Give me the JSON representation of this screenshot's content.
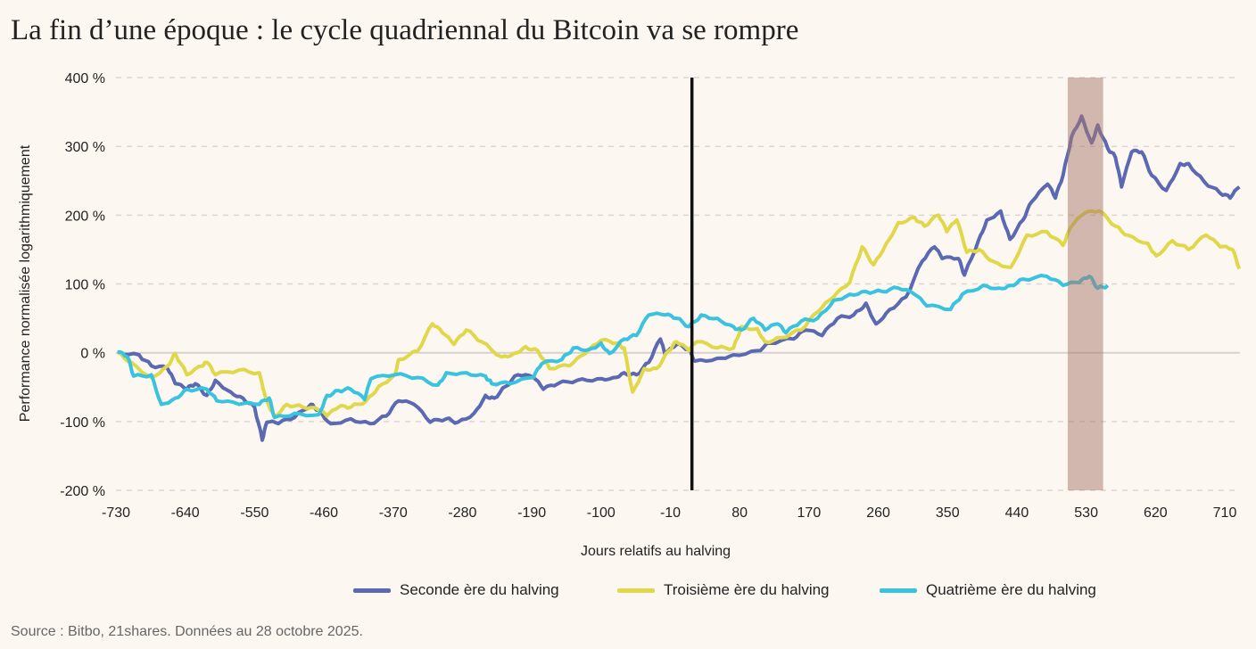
{
  "title": "La fin d’une époque : le cycle quadriennal du Bitcoin va se rompre",
  "source": "Source : Bitbo, 21shares. Données au 28 octobre 2025.",
  "chart_data": {
    "type": "line",
    "title": "La fin d’une époque : le cycle quadriennal du Bitcoin va se rompre",
    "xlabel": "Jours relatifs au halving",
    "ylabel": "Performance normalisée logarithmiquement",
    "xlim": [
      -730,
      735
    ],
    "ylim": [
      -200,
      400
    ],
    "x_ticks": [
      -730,
      -640,
      -550,
      -460,
      -370,
      -280,
      -190,
      -100,
      -10,
      80,
      170,
      260,
      350,
      440,
      530,
      620,
      710
    ],
    "y_ticks": [
      400,
      300,
      200,
      100,
      0,
      -100,
      -200
    ],
    "y_tick_labels": [
      "400 %",
      "300 %",
      "200 %",
      "100 %",
      "0 %",
      "-100 %",
      "-200 %"
    ],
    "grid": "horizontal dashed",
    "legend_position": "bottom",
    "halving_line_day": 18,
    "shaded_range": [
      506,
      552
    ],
    "colors": {
      "background": "#fdf7f2",
      "halving_line": "#111111",
      "band": "#a8776a"
    },
    "series": [
      {
        "name": "Seconde ère du halving",
        "color": "#5b69b2",
        "points": [
          [
            -728,
            1
          ],
          [
            -700,
            -3
          ],
          [
            -684,
            -19
          ],
          [
            -663,
            -23
          ],
          [
            -653,
            -45
          ],
          [
            -638,
            -53
          ],
          [
            -627,
            -45
          ],
          [
            -612,
            -62
          ],
          [
            -601,
            -40
          ],
          [
            -581,
            -57
          ],
          [
            -565,
            -66
          ],
          [
            -550,
            -79
          ],
          [
            -540,
            -127
          ],
          [
            -534,
            -101
          ],
          [
            -519,
            -103
          ],
          [
            -498,
            -94
          ],
          [
            -477,
            -75
          ],
          [
            -467,
            -83
          ],
          [
            -451,
            -103
          ],
          [
            -425,
            -96
          ],
          [
            -400,
            -103
          ],
          [
            -379,
            -92
          ],
          [
            -363,
            -70
          ],
          [
            -343,
            -75
          ],
          [
            -322,
            -101
          ],
          [
            -301,
            -96
          ],
          [
            -286,
            -101
          ],
          [
            -265,
            -88
          ],
          [
            -250,
            -62
          ],
          [
            -239,
            -66
          ],
          [
            -224,
            -49
          ],
          [
            -208,
            -32
          ],
          [
            -188,
            -36
          ],
          [
            -175,
            -53
          ],
          [
            -156,
            -45
          ],
          [
            -131,
            -40
          ],
          [
            -105,
            -38
          ],
          [
            -84,
            -36
          ],
          [
            -70,
            -29
          ],
          [
            -54,
            -32
          ],
          [
            -38,
            -14
          ],
          [
            -23,
            20
          ],
          [
            -17,
            -3
          ],
          [
            -2,
            12
          ],
          [
            14,
            5
          ],
          [
            22,
            -12
          ],
          [
            51,
            -8
          ],
          [
            72,
            -3
          ],
          [
            103,
            3
          ],
          [
            119,
            14
          ],
          [
            150,
            20
          ],
          [
            166,
            33
          ],
          [
            187,
            25
          ],
          [
            207,
            50
          ],
          [
            228,
            55
          ],
          [
            244,
            72
          ],
          [
            257,
            42
          ],
          [
            275,
            63
          ],
          [
            296,
            81
          ],
          [
            317,
            133
          ],
          [
            333,
            154
          ],
          [
            343,
            137
          ],
          [
            364,
            137
          ],
          [
            372,
            113
          ],
          [
            390,
            163
          ],
          [
            401,
            193
          ],
          [
            419,
            206
          ],
          [
            431,
            165
          ],
          [
            448,
            193
          ],
          [
            459,
            219
          ],
          [
            480,
            245
          ],
          [
            490,
            225
          ],
          [
            500,
            258
          ],
          [
            511,
            314
          ],
          [
            524,
            344
          ],
          [
            537,
            305
          ],
          [
            545,
            331
          ],
          [
            558,
            297
          ],
          [
            568,
            284
          ],
          [
            576,
            241
          ],
          [
            589,
            292
          ],
          [
            602,
            292
          ],
          [
            615,
            258
          ],
          [
            634,
            236
          ],
          [
            652,
            275
          ],
          [
            663,
            275
          ],
          [
            683,
            249
          ],
          [
            704,
            232
          ],
          [
            717,
            225
          ],
          [
            729,
            241
          ]
        ]
      },
      {
        "name": "Troisième ère du halving",
        "color": "#e0d84a",
        "points": [
          [
            -728,
            1
          ],
          [
            -710,
            -14
          ],
          [
            -684,
            -36
          ],
          [
            -663,
            -19
          ],
          [
            -653,
            -1
          ],
          [
            -638,
            -32
          ],
          [
            -617,
            -19
          ],
          [
            -612,
            -14
          ],
          [
            -601,
            -32
          ],
          [
            -570,
            -25
          ],
          [
            -544,
            -29
          ],
          [
            -534,
            -70
          ],
          [
            -524,
            -92
          ],
          [
            -508,
            -75
          ],
          [
            -487,
            -79
          ],
          [
            -467,
            -83
          ],
          [
            -456,
            -92
          ],
          [
            -441,
            -79
          ],
          [
            -425,
            -79
          ],
          [
            -405,
            -70
          ],
          [
            -389,
            -49
          ],
          [
            -368,
            -32
          ],
          [
            -363,
            -10
          ],
          [
            -338,
            3
          ],
          [
            -319,
            42
          ],
          [
            -306,
            29
          ],
          [
            -291,
            12
          ],
          [
            -275,
            33
          ],
          [
            -255,
            16
          ],
          [
            -229,
            -6
          ],
          [
            -213,
            -1
          ],
          [
            -198,
            9
          ],
          [
            -182,
            3
          ],
          [
            -167,
            -23
          ],
          [
            -141,
            -19
          ],
          [
            -120,
            -1
          ],
          [
            -100,
            18
          ],
          [
            -79,
            14
          ],
          [
            -70,
            7
          ],
          [
            -59,
            -57
          ],
          [
            -44,
            -23
          ],
          [
            -28,
            -23
          ],
          [
            -12,
            3
          ],
          [
            -2,
            16
          ],
          [
            14,
            3
          ],
          [
            24,
            16
          ],
          [
            51,
            7
          ],
          [
            72,
            7
          ],
          [
            82,
            38
          ],
          [
            103,
            35
          ],
          [
            113,
            16
          ],
          [
            134,
            22
          ],
          [
            160,
            33
          ],
          [
            181,
            59
          ],
          [
            202,
            81
          ],
          [
            223,
            102
          ],
          [
            239,
            154
          ],
          [
            254,
            128
          ],
          [
            270,
            158
          ],
          [
            286,
            189
          ],
          [
            307,
            197
          ],
          [
            320,
            184
          ],
          [
            338,
            200
          ],
          [
            349,
            176
          ],
          [
            362,
            193
          ],
          [
            375,
            146
          ],
          [
            391,
            150
          ],
          [
            409,
            133
          ],
          [
            432,
            124
          ],
          [
            453,
            171
          ],
          [
            479,
            176
          ],
          [
            500,
            156
          ],
          [
            511,
            184
          ],
          [
            527,
            202
          ],
          [
            547,
            206
          ],
          [
            568,
            184
          ],
          [
            584,
            171
          ],
          [
            610,
            159
          ],
          [
            621,
            141
          ],
          [
            642,
            163
          ],
          [
            663,
            150
          ],
          [
            686,
            171
          ],
          [
            704,
            154
          ],
          [
            720,
            150
          ],
          [
            729,
            122
          ]
        ]
      },
      {
        "name": "Quatrième ère du halving",
        "color": "#3ac3df",
        "points": [
          [
            -728,
            1
          ],
          [
            -715,
            -6
          ],
          [
            -707,
            -34
          ],
          [
            -684,
            -32
          ],
          [
            -671,
            -75
          ],
          [
            -653,
            -66
          ],
          [
            -638,
            -53
          ],
          [
            -612,
            -53
          ],
          [
            -599,
            -70
          ],
          [
            -570,
            -75
          ],
          [
            -544,
            -75
          ],
          [
            -531,
            -66
          ],
          [
            -524,
            -94
          ],
          [
            -498,
            -88
          ],
          [
            -467,
            -90
          ],
          [
            -456,
            -62
          ],
          [
            -441,
            -55
          ],
          [
            -425,
            -53
          ],
          [
            -407,
            -68
          ],
          [
            -399,
            -38
          ],
          [
            -368,
            -32
          ],
          [
            -338,
            -36
          ],
          [
            -312,
            -47
          ],
          [
            -301,
            -29
          ],
          [
            -275,
            -29
          ],
          [
            -250,
            -34
          ],
          [
            -242,
            -45
          ],
          [
            -218,
            -45
          ],
          [
            -188,
            -36
          ],
          [
            -177,
            -16
          ],
          [
            -151,
            -10
          ],
          [
            -136,
            7
          ],
          [
            -115,
            5
          ],
          [
            -100,
            14
          ],
          [
            -89,
            -1
          ],
          [
            -70,
            20
          ],
          [
            -54,
            25
          ],
          [
            -38,
            55
          ],
          [
            -17,
            55
          ],
          [
            -2,
            50
          ],
          [
            14,
            38
          ],
          [
            30,
            55
          ],
          [
            51,
            50
          ],
          [
            72,
            38
          ],
          [
            82,
            33
          ],
          [
            98,
            50
          ],
          [
            113,
            33
          ],
          [
            129,
            42
          ],
          [
            140,
            29
          ],
          [
            160,
            46
          ],
          [
            181,
            50
          ],
          [
            202,
            76
          ],
          [
            223,
            85
          ],
          [
            244,
            89
          ],
          [
            265,
            89
          ],
          [
            286,
            94
          ],
          [
            307,
            85
          ],
          [
            323,
            68
          ],
          [
            354,
            63
          ],
          [
            369,
            85
          ],
          [
            396,
            98
          ],
          [
            417,
            94
          ],
          [
            432,
            98
          ],
          [
            448,
            107
          ],
          [
            479,
            111
          ],
          [
            500,
            98
          ],
          [
            521,
            102
          ],
          [
            534,
            111
          ],
          [
            545,
            94
          ],
          [
            558,
            98
          ]
        ]
      }
    ]
  }
}
